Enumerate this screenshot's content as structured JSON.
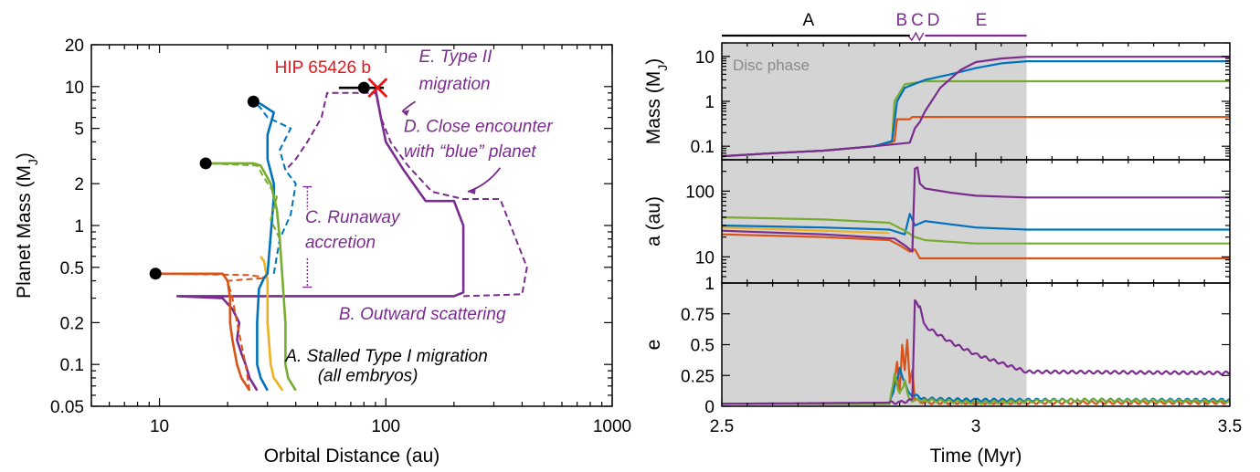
{
  "colors": {
    "purple": "#7B2C8F",
    "red": "#D95319",
    "yellow": "#EDB120",
    "blue": "#0072BD",
    "green": "#77AC30",
    "black": "#000000",
    "marker_red": "#E8161C",
    "disc_fill": "#D4D4D4",
    "disc_label": "#8A8A8A"
  },
  "chart_data": [
    {
      "type": "line",
      "xscale": "log",
      "yscale": "log",
      "xlabel": "Orbital Distance (au)",
      "ylabel": "Planet Mass (M_J)",
      "xlim": [
        5,
        1000
      ],
      "ylim": [
        0.05,
        20
      ],
      "xtick_labels": [
        {
          "v": 10,
          "t": "10"
        },
        {
          "v": 100,
          "t": "100"
        },
        {
          "v": 1000,
          "t": "1000"
        }
      ],
      "ytick_labels": [
        {
          "v": 0.05,
          "t": "0.05"
        },
        {
          "v": 0.1,
          "t": "0.1"
        },
        {
          "v": 0.2,
          "t": "0.2"
        },
        {
          "v": 0.5,
          "t": "0.5"
        },
        {
          "v": 1,
          "t": "1"
        },
        {
          "v": 2,
          "t": "2"
        },
        {
          "v": 5,
          "t": "5"
        },
        {
          "v": 10,
          "t": "10"
        },
        {
          "v": 20,
          "t": "20"
        }
      ],
      "target": {
        "name": "HIP 65426 b",
        "x": 92,
        "y": 9.8,
        "x_range": [
          62,
          98
        ]
      },
      "final_points": [
        {
          "x": 9.6,
          "y": 0.45
        },
        {
          "x": 16,
          "y": 2.8
        },
        {
          "x": 26,
          "y": 7.8
        },
        {
          "x": 80,
          "y": 9.8
        }
      ],
      "annotations": [
        {
          "text": "E. Type II",
          "style": "italic",
          "x": 140,
          "y": 15
        },
        {
          "text": "migration",
          "style": "italic",
          "x": 140,
          "y": 9.5
        },
        {
          "text": "D. Close encounter",
          "style": "italic",
          "x": 120,
          "y": 4.7
        },
        {
          "text": "with “blue” planet",
          "style": "italic",
          "x": 120,
          "y": 3.1
        },
        {
          "text": "C. Runaway",
          "style": "italic",
          "x": 44,
          "y": 1.05
        },
        {
          "text": "accretion",
          "style": "italic",
          "x": 44,
          "y": 0.69
        },
        {
          "text": "B. Outward scattering",
          "style": "italic",
          "x": 62,
          "y": 0.21
        },
        {
          "text": "A. Stalled Type I migration",
          "style": "italic",
          "x": 36,
          "y": 0.105
        },
        {
          "text": "(all embryos)",
          "style": "italic",
          "x": 50,
          "y": 0.076
        }
      ],
      "series": [
        {
          "color": "purple",
          "style": "solid",
          "x": [
            27,
            25,
            24,
            23,
            22,
            22.5,
            21,
            19,
            12,
            200,
            220,
            220,
            220,
            200,
            150,
            120,
            100,
            95,
            92,
            90
          ],
          "y": [
            0.065,
            0.08,
            0.1,
            0.12,
            0.15,
            0.2,
            0.25,
            0.3,
            0.31,
            0.31,
            0.33,
            0.5,
            1.0,
            1.5,
            1.5,
            2.5,
            4.0,
            6.0,
            8.0,
            9.5
          ]
        },
        {
          "color": "purple",
          "style": "dashed",
          "x": [
            220,
            400,
            420,
            320,
            220,
            160,
            125,
            105,
            95,
            90,
            55,
            52,
            45,
            40,
            36
          ],
          "y": [
            0.31,
            0.32,
            0.5,
            1.55,
            1.55,
            1.75,
            2.7,
            4.0,
            6.0,
            9.0,
            9.0,
            6.0,
            4.0,
            3.0,
            2.5
          ]
        },
        {
          "color": "red",
          "style": "solid",
          "x": [
            25,
            23,
            22,
            21,
            20.5,
            20.5,
            20,
            19,
            9.6
          ],
          "y": [
            0.065,
            0.08,
            0.1,
            0.15,
            0.2,
            0.3,
            0.4,
            0.45,
            0.45
          ]
        },
        {
          "color": "red",
          "style": "dashed",
          "x": [
            25,
            24,
            22,
            21,
            20,
            30,
            25,
            9.6
          ],
          "y": [
            0.065,
            0.1,
            0.2,
            0.3,
            0.4,
            0.42,
            0.44,
            0.45
          ]
        },
        {
          "color": "yellow",
          "style": "solid",
          "x": [
            35,
            32,
            31,
            30,
            30,
            29,
            28
          ],
          "y": [
            0.065,
            0.08,
            0.1,
            0.2,
            0.4,
            0.55,
            0.6
          ]
        },
        {
          "color": "blue",
          "style": "solid",
          "x": [
            30,
            28,
            27,
            27,
            27.5,
            29,
            30,
            32,
            32,
            30,
            30,
            32,
            28,
            26
          ],
          "y": [
            0.065,
            0.08,
            0.1,
            0.2,
            0.35,
            0.42,
            0.45,
            1.6,
            2.0,
            3.0,
            4.5,
            6.5,
            7.5,
            7.8
          ]
        },
        {
          "color": "blue",
          "style": "dashed",
          "x": [
            32,
            34,
            38,
            40,
            36,
            34,
            38,
            30,
            28,
            26
          ],
          "y": [
            0.45,
            0.8,
            1.2,
            2.0,
            2.5,
            3.5,
            5.0,
            6.0,
            7.0,
            7.8
          ]
        },
        {
          "color": "green",
          "style": "solid",
          "x": [
            40,
            37,
            36,
            36,
            35,
            34,
            33,
            31,
            28,
            26,
            16
          ],
          "y": [
            0.065,
            0.08,
            0.1,
            0.2,
            0.4,
            0.8,
            1.3,
            2.0,
            2.7,
            2.8,
            2.8
          ]
        },
        {
          "color": "green",
          "style": "dashed",
          "x": [
            34,
            31,
            33,
            29,
            27,
            16
          ],
          "y": [
            0.8,
            1.1,
            1.6,
            2.2,
            2.7,
            2.8
          ]
        }
      ]
    },
    {
      "type": "line",
      "panels": 3,
      "xlabel": "Time (Myr)",
      "xlim": [
        2.5,
        3.5
      ],
      "xtick_labels": [
        {
          "v": 2.5,
          "t": "2.5"
        },
        {
          "v": 3,
          "t": "3"
        },
        {
          "v": 3.5,
          "t": "3.5"
        }
      ],
      "disc_phase": {
        "label": "Disc phase",
        "start": 2.5,
        "end": 3.1
      },
      "phases": [
        {
          "label": "A",
          "start": 2.5,
          "end": 2.87,
          "color": "black"
        },
        {
          "label": "B",
          "at": 2.872,
          "color": "purple"
        },
        {
          "label": "C",
          "at": 2.883,
          "color": "purple"
        },
        {
          "label": "D",
          "at": 2.895,
          "color": "purple"
        },
        {
          "label": "E",
          "start": 2.9,
          "end": 3.1,
          "color": "purple"
        }
      ],
      "mass": {
        "ylabel": "Mass (M_J)",
        "yscale": "log",
        "ylim": [
          0.05,
          20
        ],
        "ytick_labels": [
          {
            "v": 0.1,
            "t": "0.1"
          },
          {
            "v": 1,
            "t": "1"
          },
          {
            "v": 10,
            "t": "10"
          }
        ],
        "series": [
          {
            "color": "yellow",
            "t": [
              2.5,
              2.6,
              2.7,
              2.8,
              2.835,
              2.838,
              2.84
            ],
            "v": [
              0.06,
              0.07,
              0.08,
              0.1,
              0.12,
              0.5,
              0.6
            ]
          },
          {
            "color": "red",
            "t": [
              2.5,
              2.6,
              2.7,
              2.8,
              2.84,
              2.845,
              2.87,
              2.875,
              3.5
            ],
            "v": [
              0.06,
              0.07,
              0.08,
              0.1,
              0.13,
              0.4,
              0.4,
              0.45,
              0.45
            ]
          },
          {
            "color": "green",
            "t": [
              2.5,
              2.6,
              2.7,
              2.8,
              2.835,
              2.84,
              2.86,
              2.9,
              3.0,
              3.5
            ],
            "v": [
              0.06,
              0.07,
              0.08,
              0.1,
              0.13,
              1.0,
              2.4,
              2.8,
              2.8,
              2.8
            ]
          },
          {
            "color": "blue",
            "t": [
              2.5,
              2.6,
              2.7,
              2.8,
              2.835,
              2.845,
              2.86,
              2.9,
              2.95,
              3.0,
              3.05,
              3.1,
              3.5
            ],
            "v": [
              0.06,
              0.07,
              0.08,
              0.1,
              0.13,
              1.0,
              2.0,
              3.0,
              4.0,
              5.5,
              7.0,
              7.8,
              7.8
            ]
          },
          {
            "color": "purple",
            "t": [
              2.5,
              2.6,
              2.7,
              2.8,
              2.87,
              2.88,
              2.89,
              2.9,
              2.93,
              2.97,
              3.0,
              3.05,
              3.1,
              3.5
            ],
            "v": [
              0.06,
              0.07,
              0.08,
              0.1,
              0.12,
              0.25,
              0.35,
              0.6,
              2.0,
              5.0,
              7.5,
              9.0,
              9.8,
              9.8
            ]
          }
        ]
      },
      "a": {
        "ylabel": "a (au)",
        "yscale": "log",
        "ylim": [
          4,
          300
        ],
        "ytick_labels": [
          {
            "v": 10,
            "t": "10"
          },
          {
            "v": 100,
            "t": "100"
          }
        ],
        "series": [
          {
            "color": "red",
            "t": [
              2.5,
              2.7,
              2.83,
              2.85,
              2.87,
              2.88,
              2.89,
              3.5
            ],
            "v": [
              22,
              20,
              18,
              15,
              12,
              13,
              9.5,
              9.5
            ]
          },
          {
            "color": "yellow",
            "t": [
              2.5,
              2.7,
              2.83
            ],
            "v": [
              28,
              25,
              23
            ]
          },
          {
            "color": "blue",
            "t": [
              2.5,
              2.7,
              2.83,
              2.86,
              2.87,
              2.88,
              2.9,
              3.0,
              3.1,
              3.5
            ],
            "v": [
              30,
              28,
              26,
              22,
              45,
              30,
              35,
              28,
              26,
              26
            ]
          },
          {
            "color": "green",
            "t": [
              2.5,
              2.7,
              2.83,
              2.86,
              2.88,
              2.9,
              3.0,
              3.5
            ],
            "v": [
              40,
              37,
              33,
              25,
              20,
              18,
              16,
              16
            ]
          },
          {
            "color": "purple",
            "t": [
              2.5,
              2.7,
              2.84,
              2.86,
              2.87,
              2.875,
              2.88,
              2.885,
              2.89,
              2.9,
              2.95,
              3.0,
              3.1,
              3.5
            ],
            "v": [
              25,
              22,
              19,
              15,
              13,
              12,
              220,
              230,
              130,
              110,
              95,
              85,
              80,
              80
            ]
          }
        ]
      },
      "e": {
        "ylabel": "e",
        "yscale": "linear",
        "ylim": [
          0,
          1
        ],
        "ytick_labels": [
          {
            "v": 0,
            "t": "0"
          },
          {
            "v": 0.25,
            "t": "0.25"
          },
          {
            "v": 0.5,
            "t": "0.5"
          },
          {
            "v": 0.75,
            "t": "0.75"
          },
          {
            "v": 1,
            "t": "1"
          }
        ],
        "series": [
          {
            "color": "red",
            "t": [
              2.5,
              2.83,
              2.84,
              2.845,
              2.85,
              2.855,
              2.86,
              2.865,
              2.87,
              2.875,
              2.88,
              2.9,
              3.0,
              3.5
            ],
            "v": [
              0.02,
              0.02,
              0.2,
              0.35,
              0.1,
              0.5,
              0.3,
              0.55,
              0.2,
              0.3,
              0.05,
              0.03,
              0.03,
              0.03
            ]
          },
          {
            "color": "blue",
            "t": [
              2.5,
              2.83,
              2.84,
              2.85,
              2.86,
              2.87,
              2.9,
              3.0,
              3.2,
              3.5
            ],
            "v": [
              0.02,
              0.02,
              0.15,
              0.3,
              0.2,
              0.1,
              0.06,
              0.05,
              0.05,
              0.05
            ]
          },
          {
            "color": "green",
            "t": [
              2.5,
              2.83,
              2.84,
              2.85,
              2.86,
              2.87,
              2.9,
              3.0,
              3.2,
              3.5
            ],
            "v": [
              0.02,
              0.02,
              0.25,
              0.1,
              0.2,
              0.05,
              0.05,
              0.03,
              0.05,
              0.04
            ]
          },
          {
            "color": "purple",
            "t": [
              2.5,
              2.85,
              2.875,
              2.88,
              2.89,
              2.9,
              2.95,
              3.0,
              3.05,
              3.1,
              3.5
            ],
            "v": [
              0.02,
              0.03,
              0.05,
              0.85,
              0.8,
              0.65,
              0.52,
              0.42,
              0.35,
              0.28,
              0.27
            ]
          }
        ]
      }
    }
  ]
}
